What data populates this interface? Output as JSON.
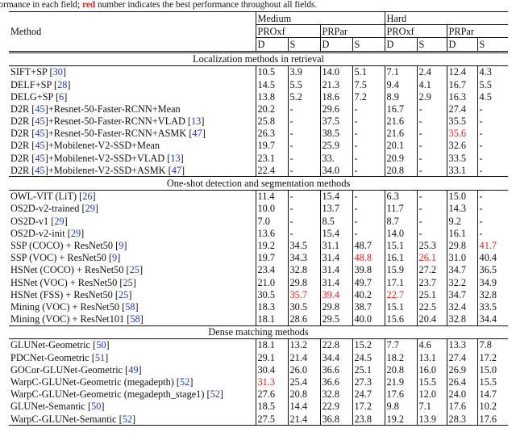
{
  "caption": {
    "pre": "erformance in each field; ",
    "highlight": "red",
    "post": " number indicates the best performance throughout all fields."
  },
  "header": {
    "method": "Method",
    "medium": "Medium",
    "hard": "Hard",
    "proxf": "PROxf",
    "prpar": "PRPar",
    "d": "D",
    "s": "S"
  },
  "sections": [
    {
      "title": "Localization methods in retrieval",
      "rows": [
        {
          "name": "SIFT+SP",
          "refs": [
            "30"
          ],
          "cells": [
            "10.5",
            "3.9",
            "14.0",
            "5.1",
            "7.1",
            "2.4",
            "12.4",
            "4.3"
          ],
          "bold": [],
          "red": []
        },
        {
          "name": "DELF+SP",
          "refs": [
            "28"
          ],
          "cells": [
            "14.5",
            "5.5",
            "21.3",
            "7.5",
            "9.4",
            "4.1",
            "16.7",
            "5.5"
          ],
          "bold": [
            1,
            3,
            5,
            7
          ],
          "red": []
        },
        {
          "name": "DELG+SP",
          "refs": [
            "6"
          ],
          "cells": [
            "13.8",
            "5.2",
            "18.6",
            "7.2",
            "8.9",
            "2.9",
            "16.3",
            "4.5"
          ],
          "bold": [],
          "red": []
        },
        {
          "name": "D2R",
          "refs": [
            "45"
          ],
          "suffix": "+Resnet-50-Faster-RCNN+Mean",
          "cells": [
            "20.2",
            "-",
            "29.6",
            "-",
            "16.7",
            "-",
            "27.4",
            "-"
          ],
          "bold": [],
          "red": []
        },
        {
          "name": "D2R",
          "refs": [
            "45"
          ],
          "suffix": "+Resnet-50-Faster-RCNN+VLAD",
          "refs2": [
            "13"
          ],
          "cells": [
            "25.8",
            "-",
            "37.5",
            "-",
            "21.6",
            "-",
            "35.5",
            "-"
          ],
          "bold": [
            4
          ],
          "red": []
        },
        {
          "name": "D2R",
          "refs": [
            "45"
          ],
          "suffix": "+Resnet-50-Faster-RCNN+ASMK",
          "refs2": [
            "47"
          ],
          "cells": [
            "26.3",
            "-",
            "38.5",
            "-",
            "21.6",
            "-",
            "35.6",
            "-"
          ],
          "bold": [
            0,
            2,
            4
          ],
          "red": [
            6
          ]
        },
        {
          "name": "D2R",
          "refs": [
            "45"
          ],
          "suffix": "+Mobilenet-V2-SSD+Mean",
          "cells": [
            "19.7",
            "-",
            "25.9",
            "-",
            "20.1",
            "-",
            "32.6",
            "-"
          ],
          "bold": [],
          "red": []
        },
        {
          "name": "D2R",
          "refs": [
            "45"
          ],
          "suffix": "+Mobilenet-V2-SSD+VLAD",
          "refs2": [
            "13"
          ],
          "cells": [
            "23.1",
            "-",
            "33.",
            "-",
            "20.9",
            "-",
            "33.5",
            "-"
          ],
          "bold": [],
          "red": []
        },
        {
          "name": "D2R",
          "refs": [
            "45"
          ],
          "suffix": "+Mobilenet-V2-SSD+ASMK",
          "refs2": [
            "47"
          ],
          "cells": [
            "22.4",
            "-",
            "34.0",
            "-",
            "20.8",
            "-",
            "33.1",
            "-"
          ],
          "bold": [],
          "red": []
        }
      ]
    },
    {
      "title": "One-shot detection and segmentation methods",
      "rows": [
        {
          "name": "OWL-VIT (LiT)",
          "refs": [
            "26"
          ],
          "cells": [
            "11.4",
            "-",
            "15.4",
            "-",
            "6.3",
            "-",
            "15.0",
            "-"
          ],
          "bold": [],
          "red": []
        },
        {
          "name": "OS2D-v2-trained",
          "refs": [
            "29"
          ],
          "cells": [
            "10.0",
            "-",
            "13.7",
            "-",
            "11.7",
            "-",
            "14.3",
            "-"
          ],
          "bold": [],
          "red": []
        },
        {
          "name": "OS2D-v1",
          "refs": [
            "29"
          ],
          "cells": [
            "7.0",
            "-",
            "8.5",
            "-",
            "8.7",
            "-",
            "9.2",
            "-"
          ],
          "bold": [],
          "red": []
        },
        {
          "name": "OS2D-v2-init",
          "refs": [
            "29"
          ],
          "cells": [
            "13.6",
            "-",
            "15.4",
            "-",
            "14.0",
            "-",
            "16.1",
            "-"
          ],
          "bold": [],
          "red": []
        },
        {
          "name": "SSP (COCO) + ResNet50",
          "refs": [
            "9"
          ],
          "cells": [
            "19.2",
            "34.5",
            "31.1",
            "48.7",
            "15.1",
            "25.3",
            "29.8",
            "41.7"
          ],
          "bold": [],
          "red": [
            7
          ]
        },
        {
          "name": "SSP (VOC) + ResNet50",
          "refs": [
            "9"
          ],
          "cells": [
            "19.7",
            "34.3",
            "31.4",
            "48.8",
            "16.1",
            "26.1",
            "31.0",
            "40.4"
          ],
          "bold": [],
          "red": [
            3,
            5
          ]
        },
        {
          "name": "HSNet (COCO) + ResNet50",
          "refs": [
            "25"
          ],
          "cells": [
            "23.4",
            "32.8",
            "31.4",
            "39.8",
            "15.9",
            "27.2",
            "34.7",
            "36.5"
          ],
          "bold": [],
          "red": []
        },
        {
          "name": "HSNet (VOC) + ResNet50",
          "refs": [
            "25"
          ],
          "cells": [
            "21.0",
            "29.8",
            "31.4",
            "49.7",
            "17.1",
            "23.7",
            "32.2",
            "34.9"
          ],
          "bold": [],
          "red": []
        },
        {
          "name": "HSNet (FSS) + ResNet50",
          "refs": [
            "25"
          ],
          "cells": [
            "30.5",
            "35.7",
            "39.4",
            "40.2",
            "22.7",
            "25.1",
            "34.7",
            "32.8"
          ],
          "bold": [
            0,
            6
          ],
          "red": [
            1,
            2,
            4
          ]
        },
        {
          "name": "Mining (VOC) + ResNet50",
          "refs": [
            "58"
          ],
          "cells": [
            "18.3",
            "30.5",
            "29.8",
            "38.7",
            "15.1",
            "22.5",
            "32.4",
            "33.5"
          ],
          "bold": [],
          "red": []
        },
        {
          "name": "Mining (VOC) + ResNet101",
          "refs": [
            "58"
          ],
          "cells": [
            "18.1",
            "28.6",
            "29.5",
            "40.0",
            "15.6",
            "20.4",
            "32.8",
            "34.4"
          ],
          "bold": [],
          "red": []
        }
      ]
    },
    {
      "title": "Dense matching methods",
      "rows": [
        {
          "name": "GLUNet-Geometric",
          "refs": [
            "50"
          ],
          "cells": [
            "18.1",
            "13.2",
            "22.8",
            "15.2",
            "7.7",
            "4.6",
            "13.3",
            "7.8"
          ],
          "bold": [],
          "red": []
        },
        {
          "name": "PDCNet-Geometric",
          "refs": [
            "51"
          ],
          "cells": [
            "29.1",
            "21.4",
            "34.4",
            "24.5",
            "18.2",
            "13.1",
            "27.4",
            "17.2"
          ],
          "bold": [],
          "red": []
        },
        {
          "name": "GOCor-GLUNet-Geometric",
          "refs": [
            "49"
          ],
          "cells": [
            "30.4",
            "26.0",
            "36.6",
            "25.1",
            "20.8",
            "16.0",
            "26.9",
            "15.0"
          ],
          "bold": [
            1,
            5
          ],
          "red": []
        },
        {
          "name": "WarpC-GLUNet-Geometric (megadepth)",
          "refs": [
            "52"
          ],
          "cells": [
            "31.3",
            "25.4",
            "36.6",
            "27.3",
            "21.9",
            "15.5",
            "26.4",
            "15.5"
          ],
          "bold": [
            3,
            4
          ],
          "red": [
            0
          ]
        },
        {
          "name": "WarpC-GLUNet-Geometric (megadepth_stage1)",
          "refs": [
            "52"
          ],
          "cells": [
            "27.6",
            "20.8",
            "32.8",
            "24.7",
            "17.6",
            "12.0",
            "24.0",
            "14.7"
          ],
          "bold": [],
          "red": []
        },
        {
          "name": "GLUNet-Semantic",
          "refs": [
            "50"
          ],
          "cells": [
            "18.5",
            "14.4",
            "22.9",
            "17.2",
            "9.8",
            "7.1",
            "17.6",
            "10.2"
          ],
          "bold": [],
          "red": []
        },
        {
          "name": "WarpC-GLUNet-Semantic",
          "refs": [
            "52"
          ],
          "cells": [
            "27.5",
            "21.4",
            "36.8",
            "23.8",
            "19.2",
            "13.9",
            "28.3",
            "17.6"
          ],
          "bold": [
            2,
            6,
            7
          ],
          "red": []
        }
      ]
    }
  ]
}
